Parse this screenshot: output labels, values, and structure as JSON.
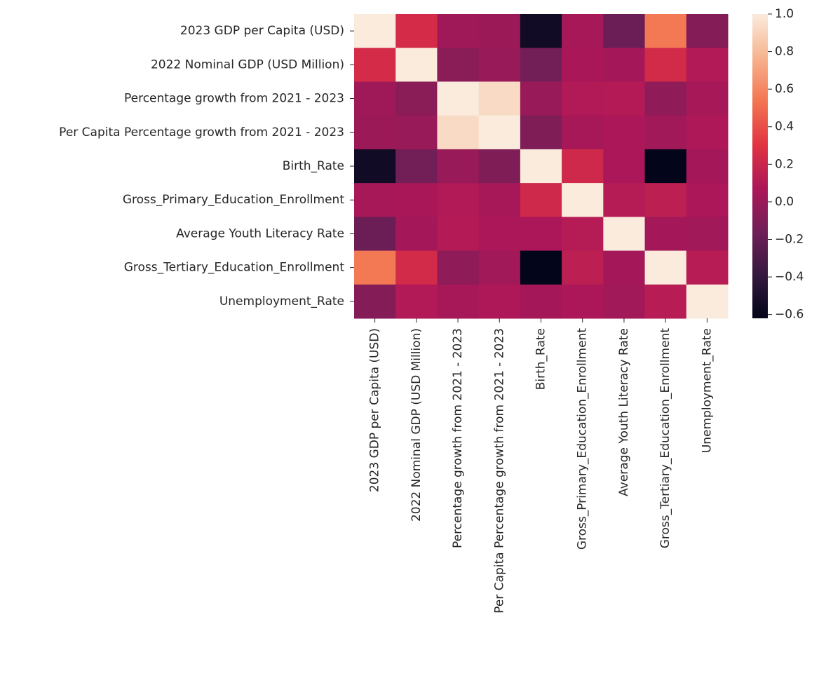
{
  "chart_data": {
    "type": "heatmap",
    "title": "",
    "xlabel": "",
    "ylabel": "",
    "row_labels": [
      "2023 GDP per Capita (USD)",
      "2022 Nominal GDP (USD Million)",
      "Percentage growth from 2021 - 2023",
      "Per Capita Percentage growth from 2021 - 2023",
      "Birth_Rate",
      "Gross_Primary_Education_Enrollment",
      "Average Youth Literacy Rate",
      "Gross_Tertiary_Education_Enrollment",
      "Unemployment_Rate"
    ],
    "column_labels": [
      "2023 GDP per Capita (USD)",
      "2022 Nominal GDP (USD Million)",
      "Percentage growth from 2021 - 2023",
      "Per Capita Percentage growth from 2021 - 2023",
      "Birth_Rate",
      "Gross_Primary_Education_Enrollment",
      "Average Youth Literacy Rate",
      "Gross_Tertiary_Education_Enrollment",
      "Unemployment_Rate"
    ],
    "values": [
      [
        1.0,
        0.25,
        0.02,
        0.01,
        -0.55,
        0.05,
        -0.18,
        0.55,
        -0.08
      ],
      [
        0.25,
        1.0,
        -0.06,
        0.0,
        -0.15,
        0.06,
        0.04,
        0.24,
        0.09
      ],
      [
        0.02,
        -0.06,
        1.0,
        0.93,
        0.0,
        0.09,
        0.1,
        -0.04,
        0.05
      ],
      [
        0.01,
        0.0,
        0.93,
        1.0,
        -0.1,
        0.05,
        0.07,
        0.03,
        0.08
      ],
      [
        -0.55,
        -0.15,
        0.0,
        -0.1,
        1.0,
        0.22,
        0.07,
        -0.62,
        0.04
      ],
      [
        0.05,
        0.06,
        0.09,
        0.05,
        0.22,
        1.0,
        0.11,
        0.14,
        0.07
      ],
      [
        -0.18,
        0.04,
        0.1,
        0.07,
        0.07,
        0.11,
        1.0,
        0.04,
        0.03
      ],
      [
        0.55,
        0.24,
        -0.04,
        0.03,
        -0.62,
        0.14,
        0.04,
        1.0,
        0.12
      ],
      [
        -0.08,
        0.09,
        0.05,
        0.08,
        0.04,
        0.07,
        0.03,
        0.12,
        1.0
      ]
    ],
    "colorbar": {
      "vmin": -0.62,
      "vmax": 1.0,
      "ticks": [
        1.0,
        0.8,
        0.6,
        0.4,
        0.2,
        0.0,
        -0.2,
        -0.4,
        -0.6
      ],
      "tick_labels": [
        "1.0",
        "0.8",
        "0.6",
        "0.4",
        "0.2",
        "0.0",
        "−0.2",
        "−0.4",
        "−0.6"
      ],
      "colormap": "rocket",
      "colormap_stops": [
        "#03051a",
        "#35193e",
        "#701f57",
        "#ad1759",
        "#e13342",
        "#f37651",
        "#f6b48f",
        "#faebdd"
      ]
    },
    "grid": false,
    "legend": "colorbar-right"
  }
}
